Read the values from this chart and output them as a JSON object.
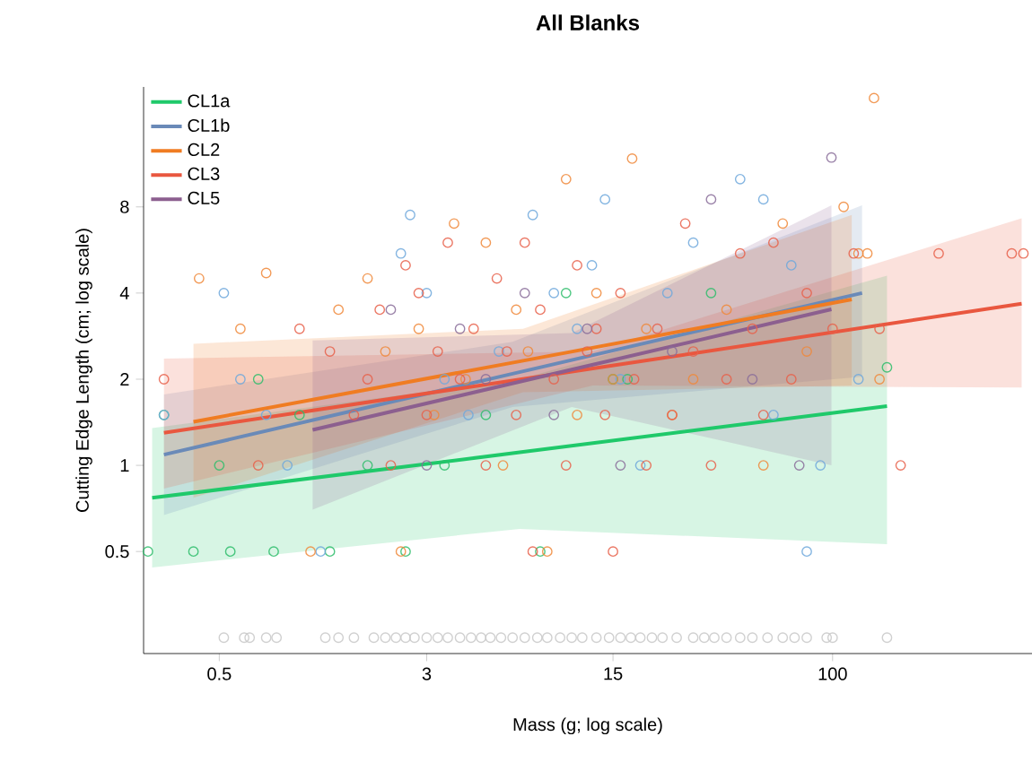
{
  "chart_data": {
    "type": "scatter",
    "title": "All Blanks",
    "xlabel": "Mass (g; log scale)",
    "ylabel": "Cutting Edge Length (cm; log scale)",
    "log": "xy",
    "xlim": [
      0.26,
      560
    ],
    "ylim": [
      0.22,
      21
    ],
    "xticks": [
      0.5,
      3,
      15,
      100
    ],
    "yticks": [
      0.5,
      1,
      2,
      4,
      8
    ],
    "legend": "top left",
    "marker": "circle",
    "series": [
      {
        "color": "#c8c8c8",
        "x": [
          0.52,
          0.62,
          0.65,
          0.75,
          0.82,
          1.25,
          1.4,
          1.6,
          1.9,
          2.1,
          2.3,
          2.5,
          2.7,
          3.0,
          3.3,
          3.6,
          4,
          4.4,
          4.8,
          5.2,
          5.7,
          6.3,
          7,
          7.8,
          8.5,
          9.5,
          10.5,
          11.5,
          13,
          14.5,
          16,
          17.5,
          19,
          21,
          23,
          26,
          30,
          33,
          36,
          40,
          45,
          50,
          57,
          65,
          72,
          80,
          95,
          100,
          160
        ],
        "values": [
          0.25,
          0.25,
          0.25,
          0.25,
          0.25,
          0.25,
          0.25,
          0.25,
          0.25,
          0.25,
          0.25,
          0.25,
          0.25,
          0.25,
          0.25,
          0.25,
          0.25,
          0.25,
          0.25,
          0.25,
          0.25,
          0.25,
          0.25,
          0.25,
          0.25,
          0.25,
          0.25,
          0.25,
          0.25,
          0.25,
          0.25,
          0.25,
          0.25,
          0.25,
          0.25,
          0.25,
          0.25,
          0.25,
          0.25,
          0.25,
          0.25,
          0.25,
          0.25,
          0.25,
          0.25,
          0.25,
          0.25,
          0.25,
          0.25
        ]
      },
      {
        "color": "#2ebd6b",
        "x": [
          0.27,
          0.31,
          0.4,
          0.5,
          0.55,
          0.7,
          0.8,
          1.0,
          1.3,
          1.8,
          2.5,
          3.5,
          5,
          8,
          10,
          15,
          17,
          35,
          160
        ],
        "values": [
          0.5,
          1.5,
          0.5,
          1,
          0.5,
          2,
          0.5,
          1.5,
          0.5,
          1,
          0.5,
          1,
          1.5,
          0.5,
          4,
          2,
          2,
          4,
          2.2
        ]
      },
      {
        "color": "#6fa8dc",
        "x": [
          0.31,
          0.52,
          0.6,
          0.75,
          0.9,
          1.2,
          2.4,
          2.6,
          3,
          3.5,
          4.3,
          5.6,
          7.5,
          9,
          11,
          12.5,
          14,
          16,
          19,
          24,
          30,
          45,
          55,
          60,
          70,
          80,
          90,
          125
        ],
        "values": [
          1.5,
          4,
          2,
          1.5,
          1,
          0.5,
          5.5,
          7.5,
          4,
          2,
          1.5,
          2.5,
          7.5,
          4,
          3,
          5,
          8.5,
          2,
          1,
          4,
          6,
          10,
          8.5,
          1.5,
          5,
          0.5,
          1,
          2
        ]
      },
      {
        "color": "#f0883a",
        "x": [
          0.42,
          0.6,
          0.75,
          1.1,
          1.4,
          1.8,
          2.1,
          2.4,
          2.8,
          3.2,
          3.8,
          4.2,
          5,
          5.8,
          6.5,
          7.2,
          8.5,
          10,
          11,
          13,
          15,
          17.7,
          20,
          25,
          30,
          40,
          55,
          65,
          80,
          110,
          125,
          135,
          143,
          150
        ],
        "values": [
          4.5,
          3,
          4.7,
          0.5,
          3.5,
          4.5,
          2.5,
          0.5,
          3,
          1.5,
          7,
          2,
          6,
          1,
          3.5,
          2.5,
          0.5,
          10,
          1.5,
          4,
          2,
          11.8,
          3,
          1.5,
          2,
          3.5,
          1,
          7,
          2.5,
          8,
          5.5,
          5.5,
          19.2,
          2
        ]
      },
      {
        "color": "#e8604a",
        "x": [
          0.31,
          0.7,
          1.0,
          1.3,
          1.6,
          1.8,
          2.0,
          2.2,
          2.5,
          2.8,
          3.0,
          3.3,
          3.6,
          4.0,
          4.5,
          5,
          5.5,
          6,
          6.5,
          7,
          7.5,
          8,
          9,
          10,
          11,
          12,
          13,
          14,
          15,
          16,
          18,
          20,
          22,
          25,
          28,
          30,
          35,
          40,
          45,
          50,
          55,
          60,
          70,
          80,
          100,
          120,
          150,
          180,
          250,
          470,
          520
        ],
        "values": [
          2,
          1,
          3,
          2.5,
          1.5,
          2,
          3.5,
          1,
          5,
          4,
          1.5,
          2.5,
          6,
          2,
          3,
          1,
          4.5,
          2.5,
          1.5,
          6,
          0.5,
          3.5,
          2,
          1,
          5,
          2.5,
          3,
          1.5,
          0.5,
          4,
          2,
          1,
          3,
          1.5,
          7,
          2.5,
          1,
          2,
          5.5,
          3,
          1.5,
          6,
          2,
          4,
          3,
          5.5,
          3,
          1,
          5.5,
          5.5,
          5.5
        ]
      },
      {
        "color": "#8a6d9a",
        "x": [
          2.2,
          3,
          4,
          5,
          7,
          9,
          12,
          16,
          25,
          35,
          50,
          75,
          99
        ],
        "values": [
          3.5,
          1,
          3,
          2,
          4,
          1.5,
          3,
          1,
          2.5,
          8.5,
          2,
          1,
          11.9
        ]
      },
      {
        "type": "line",
        "name": "CL1a",
        "color": "#1fc96a",
        "marker": "none",
        "x": [
          0.28,
          6.7,
          160
        ],
        "values": [
          0.77,
          1.11,
          1.61
        ],
        "lower": [
          0.44,
          0.6,
          0.53
        ],
        "upper": [
          1.35,
          2.0,
          4.6
        ]
      },
      {
        "type": "line",
        "name": "CL1b",
        "color": "#6a8ab8",
        "marker": "none",
        "x": [
          0.31,
          6.3,
          129
        ],
        "values": [
          1.09,
          2.09,
          4.0
        ],
        "lower": [
          0.67,
          1.6,
          2.04
        ],
        "upper": [
          1.77,
          2.7,
          8.1
        ]
      },
      {
        "type": "line",
        "name": "CL2",
        "color": "#f07c22",
        "marker": "none",
        "x": [
          0.4,
          6.9,
          118
        ],
        "values": [
          1.42,
          2.32,
          3.8
        ],
        "lower": [
          0.77,
          1.8,
          1.9
        ],
        "upper": [
          2.66,
          3.0,
          7.5
        ]
      },
      {
        "type": "line",
        "name": "CL3",
        "color": "#e9573f",
        "marker": "none",
        "x": [
          0.31,
          12.6,
          512
        ],
        "values": [
          1.3,
          2.18,
          3.67
        ],
        "lower": [
          0.83,
          1.9,
          1.87
        ],
        "upper": [
          2.36,
          2.5,
          7.3
        ]
      },
      {
        "type": "line",
        "name": "CL5",
        "color": "#8c5f8f",
        "marker": "none",
        "x": [
          1.12,
          10.5,
          99
        ],
        "values": [
          1.33,
          2.16,
          3.51
        ],
        "lower": [
          0.7,
          1.6,
          1.0
        ],
        "upper": [
          2.73,
          2.9,
          8.1
        ]
      }
    ]
  }
}
